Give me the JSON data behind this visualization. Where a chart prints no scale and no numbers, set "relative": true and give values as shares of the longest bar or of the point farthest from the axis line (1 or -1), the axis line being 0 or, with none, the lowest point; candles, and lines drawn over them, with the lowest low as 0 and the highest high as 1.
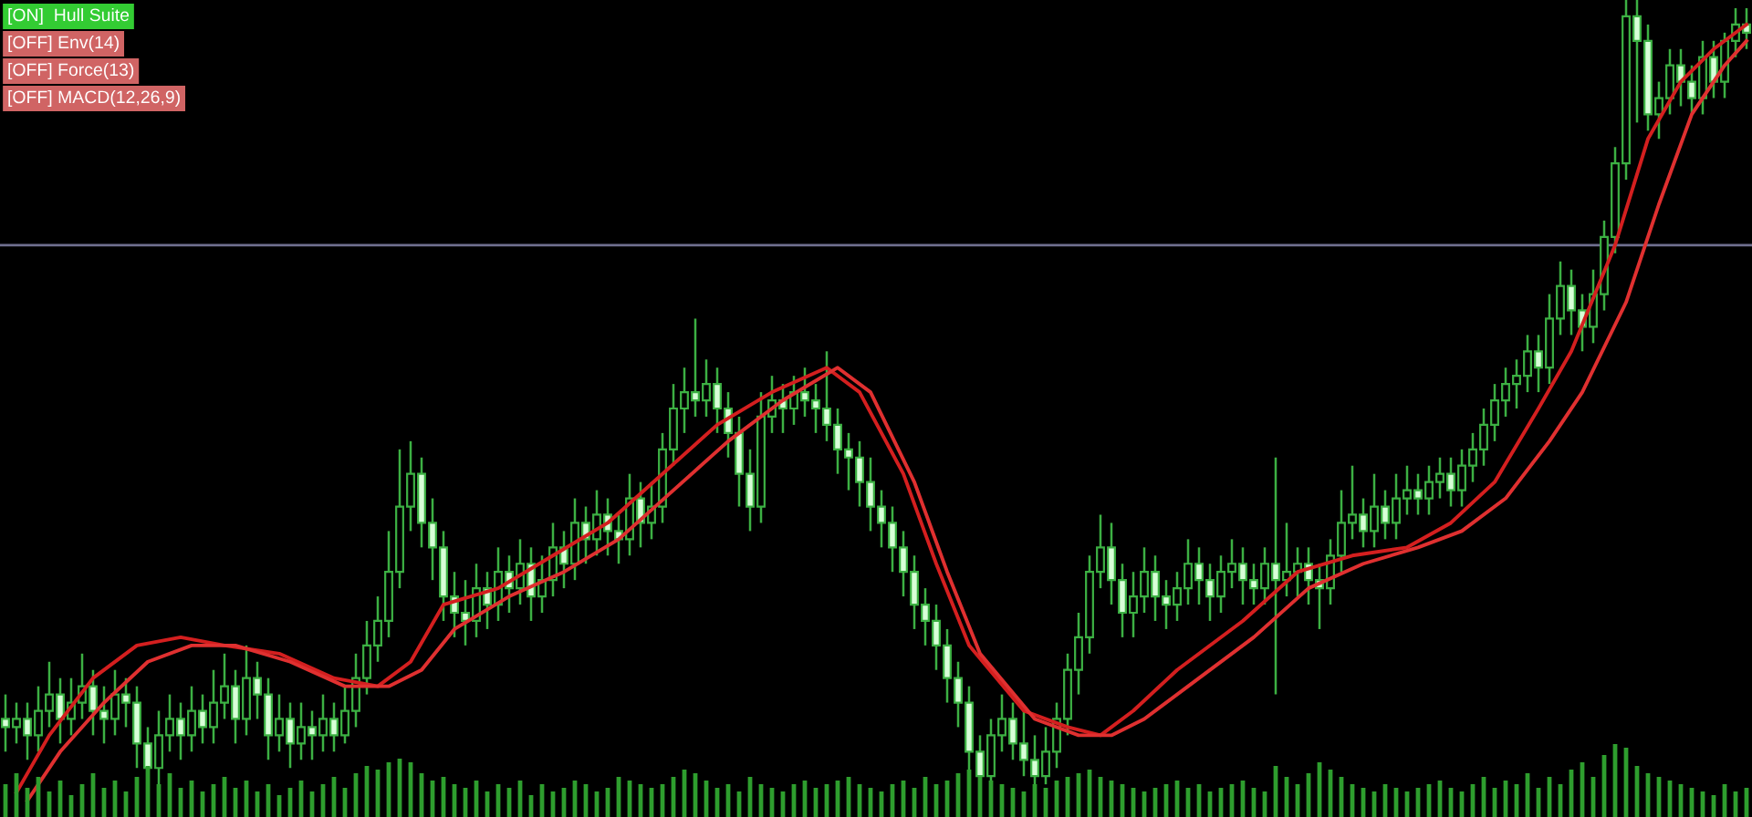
{
  "chart_data": [
    {
      "type": "candlestick",
      "relative": true,
      "categories": [
        null,
        null,
        null,
        null,
        null,
        null,
        null,
        null,
        null,
        null,
        null,
        null,
        null,
        null,
        null,
        null,
        null,
        null,
        null,
        null,
        null,
        null,
        null,
        null,
        null,
        null,
        null,
        null,
        null,
        null,
        null,
        null,
        null,
        null,
        null,
        null,
        null,
        null,
        null,
        null,
        null,
        null,
        null,
        null,
        null,
        null,
        null,
        null,
        null,
        null,
        null,
        null,
        null,
        null,
        null,
        null,
        null,
        null,
        null,
        null,
        null,
        null,
        null,
        null,
        null,
        null,
        null,
        null,
        null,
        null,
        null,
        null,
        null,
        null,
        null,
        null,
        null,
        null,
        null,
        null,
        null,
        null,
        null,
        null,
        null,
        null,
        null,
        null,
        null,
        null,
        null,
        null,
        null,
        null,
        null,
        null,
        null,
        null,
        null,
        null,
        null,
        null,
        null,
        null,
        null,
        null,
        null,
        null,
        null,
        null,
        null,
        null,
        null,
        null,
        null,
        null,
        null,
        null,
        null,
        null,
        null,
        null,
        null,
        null,
        null,
        null,
        null,
        null,
        null,
        null,
        null,
        null,
        null,
        null,
        null,
        null,
        null,
        null,
        null,
        null,
        null,
        null,
        null,
        null,
        null,
        null,
        null,
        null,
        null,
        null,
        null,
        null,
        null,
        null,
        null,
        null,
        null,
        null,
        null,
        null
      ],
      "ohlc": [
        [
          0.12,
          0.15,
          0.08,
          0.11
        ],
        [
          0.11,
          0.14,
          0.09,
          0.12
        ],
        [
          0.12,
          0.14,
          0.07,
          0.1
        ],
        [
          0.1,
          0.16,
          0.08,
          0.13
        ],
        [
          0.13,
          0.19,
          0.11,
          0.15
        ],
        [
          0.15,
          0.17,
          0.09,
          0.12
        ],
        [
          0.12,
          0.17,
          0.1,
          0.14
        ],
        [
          0.14,
          0.2,
          0.12,
          0.16
        ],
        [
          0.16,
          0.18,
          0.1,
          0.13
        ],
        [
          0.13,
          0.16,
          0.09,
          0.12
        ],
        [
          0.12,
          0.18,
          0.1,
          0.15
        ],
        [
          0.15,
          0.17,
          0.11,
          0.14
        ],
        [
          0.14,
          0.16,
          0.06,
          0.09
        ],
        [
          0.09,
          0.11,
          0.0,
          0.06
        ],
        [
          0.06,
          0.13,
          0.04,
          0.1
        ],
        [
          0.1,
          0.15,
          0.08,
          0.12
        ],
        [
          0.12,
          0.14,
          0.07,
          0.1
        ],
        [
          0.1,
          0.16,
          0.08,
          0.13
        ],
        [
          0.13,
          0.15,
          0.09,
          0.11
        ],
        [
          0.11,
          0.18,
          0.09,
          0.14
        ],
        [
          0.14,
          0.2,
          0.12,
          0.16
        ],
        [
          0.16,
          0.18,
          0.09,
          0.12
        ],
        [
          0.12,
          0.21,
          0.1,
          0.17
        ],
        [
          0.17,
          0.19,
          0.12,
          0.15
        ],
        [
          0.15,
          0.17,
          0.07,
          0.1
        ],
        [
          0.1,
          0.15,
          0.08,
          0.12
        ],
        [
          0.12,
          0.14,
          0.06,
          0.09
        ],
        [
          0.09,
          0.14,
          0.07,
          0.11
        ],
        [
          0.11,
          0.13,
          0.07,
          0.1
        ],
        [
          0.1,
          0.15,
          0.08,
          0.12
        ],
        [
          0.12,
          0.14,
          0.08,
          0.1
        ],
        [
          0.1,
          0.16,
          0.09,
          0.13
        ],
        [
          0.13,
          0.2,
          0.11,
          0.17
        ],
        [
          0.17,
          0.24,
          0.15,
          0.21
        ],
        [
          0.21,
          0.27,
          0.19,
          0.24
        ],
        [
          0.24,
          0.35,
          0.22,
          0.3
        ],
        [
          0.3,
          0.45,
          0.28,
          0.38
        ],
        [
          0.38,
          0.46,
          0.35,
          0.42
        ],
        [
          0.42,
          0.44,
          0.33,
          0.36
        ],
        [
          0.36,
          0.39,
          0.29,
          0.33
        ],
        [
          0.33,
          0.35,
          0.24,
          0.27
        ],
        [
          0.27,
          0.3,
          0.22,
          0.25
        ],
        [
          0.25,
          0.29,
          0.21,
          0.24
        ],
        [
          0.24,
          0.31,
          0.22,
          0.28
        ],
        [
          0.28,
          0.3,
          0.23,
          0.26
        ],
        [
          0.26,
          0.33,
          0.24,
          0.3
        ],
        [
          0.3,
          0.32,
          0.25,
          0.28
        ],
        [
          0.28,
          0.34,
          0.26,
          0.31
        ],
        [
          0.31,
          0.33,
          0.24,
          0.27
        ],
        [
          0.27,
          0.32,
          0.25,
          0.29
        ],
        [
          0.29,
          0.36,
          0.27,
          0.33
        ],
        [
          0.33,
          0.35,
          0.28,
          0.31
        ],
        [
          0.31,
          0.39,
          0.29,
          0.36
        ],
        [
          0.36,
          0.38,
          0.31,
          0.34
        ],
        [
          0.34,
          0.4,
          0.32,
          0.37
        ],
        [
          0.37,
          0.39,
          0.32,
          0.35
        ],
        [
          0.35,
          0.37,
          0.31,
          0.34
        ],
        [
          0.34,
          0.42,
          0.32,
          0.39
        ],
        [
          0.39,
          0.41,
          0.33,
          0.36
        ],
        [
          0.36,
          0.41,
          0.34,
          0.38
        ],
        [
          0.38,
          0.47,
          0.36,
          0.45
        ],
        [
          0.45,
          0.53,
          0.43,
          0.5
        ],
        [
          0.5,
          0.55,
          0.47,
          0.52
        ],
        [
          0.52,
          0.61,
          0.49,
          0.51
        ],
        [
          0.51,
          0.56,
          0.49,
          0.53
        ],
        [
          0.53,
          0.55,
          0.47,
          0.5
        ],
        [
          0.5,
          0.52,
          0.44,
          0.47
        ],
        [
          0.47,
          0.49,
          0.38,
          0.42
        ],
        [
          0.42,
          0.45,
          0.35,
          0.38
        ],
        [
          0.38,
          0.52,
          0.36,
          0.49
        ],
        [
          0.49,
          0.54,
          0.47,
          0.51
        ],
        [
          0.51,
          0.53,
          0.47,
          0.5
        ],
        [
          0.5,
          0.54,
          0.48,
          0.52
        ],
        [
          0.52,
          0.55,
          0.49,
          0.51
        ],
        [
          0.51,
          0.53,
          0.47,
          0.5
        ],
        [
          0.5,
          0.57,
          0.46,
          0.48
        ],
        [
          0.48,
          0.5,
          0.42,
          0.45
        ],
        [
          0.45,
          0.47,
          0.4,
          0.44
        ],
        [
          0.44,
          0.46,
          0.38,
          0.41
        ],
        [
          0.41,
          0.44,
          0.35,
          0.38
        ],
        [
          0.38,
          0.4,
          0.33,
          0.36
        ],
        [
          0.36,
          0.38,
          0.3,
          0.33
        ],
        [
          0.33,
          0.35,
          0.27,
          0.3
        ],
        [
          0.3,
          0.32,
          0.23,
          0.26
        ],
        [
          0.26,
          0.28,
          0.21,
          0.24
        ],
        [
          0.24,
          0.26,
          0.18,
          0.21
        ],
        [
          0.21,
          0.23,
          0.14,
          0.17
        ],
        [
          0.17,
          0.19,
          0.11,
          0.14
        ],
        [
          0.14,
          0.16,
          0.05,
          0.08
        ],
        [
          0.08,
          0.1,
          0.02,
          0.05
        ],
        [
          0.05,
          0.12,
          0.04,
          0.1
        ],
        [
          0.1,
          0.15,
          0.08,
          0.12
        ],
        [
          0.12,
          0.14,
          0.07,
          0.09
        ],
        [
          0.09,
          0.13,
          0.05,
          0.07
        ],
        [
          0.07,
          0.1,
          0.03,
          0.05
        ],
        [
          0.05,
          0.11,
          0.04,
          0.08
        ],
        [
          0.08,
          0.14,
          0.06,
          0.12
        ],
        [
          0.12,
          0.2,
          0.1,
          0.18
        ],
        [
          0.18,
          0.25,
          0.15,
          0.22
        ],
        [
          0.22,
          0.32,
          0.2,
          0.3
        ],
        [
          0.3,
          0.37,
          0.28,
          0.33
        ],
        [
          0.33,
          0.36,
          0.26,
          0.29
        ],
        [
          0.29,
          0.31,
          0.22,
          0.25
        ],
        [
          0.25,
          0.3,
          0.22,
          0.27
        ],
        [
          0.27,
          0.33,
          0.25,
          0.3
        ],
        [
          0.3,
          0.32,
          0.24,
          0.27
        ],
        [
          0.27,
          0.29,
          0.23,
          0.26
        ],
        [
          0.26,
          0.3,
          0.24,
          0.28
        ],
        [
          0.28,
          0.34,
          0.26,
          0.31
        ],
        [
          0.31,
          0.33,
          0.26,
          0.29
        ],
        [
          0.29,
          0.31,
          0.24,
          0.27
        ],
        [
          0.27,
          0.32,
          0.25,
          0.3
        ],
        [
          0.3,
          0.34,
          0.28,
          0.31
        ],
        [
          0.31,
          0.33,
          0.26,
          0.29
        ],
        [
          0.29,
          0.31,
          0.26,
          0.28
        ],
        [
          0.28,
          0.33,
          0.26,
          0.31
        ],
        [
          0.31,
          0.44,
          0.15,
          0.29
        ],
        [
          0.29,
          0.36,
          0.27,
          0.3
        ],
        [
          0.3,
          0.33,
          0.27,
          0.31
        ],
        [
          0.31,
          0.33,
          0.26,
          0.29
        ],
        [
          0.29,
          0.31,
          0.23,
          0.28
        ],
        [
          0.28,
          0.34,
          0.26,
          0.32
        ],
        [
          0.32,
          0.4,
          0.3,
          0.36
        ],
        [
          0.36,
          0.43,
          0.34,
          0.37
        ],
        [
          0.37,
          0.39,
          0.33,
          0.35
        ],
        [
          0.35,
          0.42,
          0.33,
          0.38
        ],
        [
          0.38,
          0.4,
          0.34,
          0.36
        ],
        [
          0.36,
          0.42,
          0.34,
          0.39
        ],
        [
          0.39,
          0.43,
          0.37,
          0.4
        ],
        [
          0.4,
          0.42,
          0.37,
          0.39
        ],
        [
          0.39,
          0.43,
          0.37,
          0.41
        ],
        [
          0.41,
          0.44,
          0.39,
          0.42
        ],
        [
          0.42,
          0.44,
          0.38,
          0.4
        ],
        [
          0.4,
          0.45,
          0.38,
          0.43
        ],
        [
          0.43,
          0.47,
          0.41,
          0.45
        ],
        [
          0.45,
          0.5,
          0.43,
          0.48
        ],
        [
          0.48,
          0.53,
          0.46,
          0.51
        ],
        [
          0.51,
          0.55,
          0.49,
          0.53
        ],
        [
          0.53,
          0.56,
          0.5,
          0.54
        ],
        [
          0.54,
          0.59,
          0.52,
          0.57
        ],
        [
          0.57,
          0.59,
          0.52,
          0.55
        ],
        [
          0.55,
          0.64,
          0.53,
          0.61
        ],
        [
          0.61,
          0.68,
          0.59,
          0.65
        ],
        [
          0.65,
          0.67,
          0.59,
          0.62
        ],
        [
          0.62,
          0.64,
          0.57,
          0.6
        ],
        [
          0.6,
          0.67,
          0.58,
          0.64
        ],
        [
          0.64,
          0.73,
          0.62,
          0.71
        ],
        [
          0.71,
          0.82,
          0.69,
          0.8
        ],
        [
          0.8,
          1.0,
          0.78,
          0.98
        ],
        [
          0.98,
          1.0,
          0.85,
          0.95
        ],
        [
          0.95,
          0.97,
          0.84,
          0.86
        ],
        [
          0.86,
          0.9,
          0.83,
          0.88
        ],
        [
          0.88,
          0.94,
          0.86,
          0.92
        ],
        [
          0.92,
          0.94,
          0.87,
          0.9
        ],
        [
          0.9,
          0.92,
          0.86,
          0.88
        ],
        [
          0.88,
          0.95,
          0.86,
          0.93
        ],
        [
          0.93,
          0.95,
          0.88,
          0.9
        ],
        [
          0.9,
          0.96,
          0.88,
          0.95
        ],
        [
          0.95,
          0.99,
          0.93,
          0.97
        ],
        [
          0.97,
          0.99,
          0.94,
          0.96
        ]
      ],
      "series": [
        {
          "type": "line",
          "color": "#d41f1f",
          "values": [
            null,
            0.03,
            null,
            null,
            0.1,
            null,
            null,
            null,
            0.17,
            null,
            null,
            null,
            0.21,
            null,
            null,
            null,
            0.22,
            null,
            null,
            null,
            0.21,
            null,
            null,
            null,
            null,
            0.2,
            null,
            null,
            null,
            null,
            0.17,
            null,
            null,
            null,
            0.16,
            null,
            null,
            0.19,
            null,
            null,
            0.26,
            null,
            null,
            null,
            null,
            0.28,
            null,
            null,
            null,
            null,
            0.32,
            null,
            null,
            null,
            null,
            0.36,
            null,
            null,
            null,
            null,
            0.42,
            null,
            null,
            null,
            null,
            0.48,
            null,
            null,
            null,
            null,
            0.52,
            null,
            null,
            null,
            null,
            0.55,
            null,
            null,
            0.52,
            null,
            null,
            null,
            0.42,
            null,
            null,
            0.31,
            null,
            null,
            0.21,
            null,
            null,
            null,
            null,
            0.13,
            null,
            null,
            null,
            0.11,
            null,
            null,
            0.1,
            null,
            null,
            0.13,
            null,
            null,
            null,
            0.18,
            null,
            null,
            null,
            null,
            null,
            0.24,
            null,
            null,
            null,
            null,
            0.3,
            null,
            null,
            null,
            null,
            0.32,
            null,
            null,
            null,
            null,
            0.33,
            null,
            null,
            null,
            0.36,
            null,
            null,
            null,
            0.41,
            null,
            null,
            null,
            0.5,
            null,
            null,
            0.57,
            null,
            null,
            null,
            0.7,
            null,
            null,
            0.83,
            null,
            null,
            0.9,
            null,
            null,
            0.94,
            null,
            null,
            0.97
          ]
        },
        {
          "type": "line",
          "color": "#e03030",
          "values": [
            null,
            null,
            0.02,
            null,
            null,
            0.08,
            null,
            null,
            null,
            0.14,
            null,
            null,
            null,
            0.19,
            null,
            null,
            null,
            0.21,
            null,
            null,
            null,
            0.21,
            null,
            null,
            null,
            null,
            0.19,
            null,
            null,
            null,
            null,
            0.16,
            null,
            null,
            null,
            0.16,
            null,
            null,
            0.18,
            null,
            null,
            0.23,
            null,
            null,
            null,
            null,
            0.27,
            null,
            null,
            null,
            null,
            0.3,
            null,
            null,
            null,
            null,
            0.34,
            null,
            null,
            null,
            null,
            0.4,
            null,
            null,
            null,
            null,
            0.46,
            null,
            null,
            null,
            null,
            0.51,
            null,
            null,
            null,
            null,
            0.55,
            null,
            null,
            0.52,
            null,
            null,
            null,
            0.41,
            null,
            null,
            0.3,
            null,
            null,
            0.2,
            null,
            null,
            null,
            null,
            0.12,
            null,
            null,
            null,
            0.1,
            null,
            null,
            0.1,
            null,
            null,
            0.12,
            null,
            null,
            null,
            0.16,
            null,
            null,
            null,
            null,
            null,
            0.22,
            null,
            null,
            null,
            null,
            0.28,
            null,
            null,
            null,
            null,
            0.31,
            null,
            null,
            null,
            null,
            0.33,
            null,
            null,
            null,
            0.35,
            null,
            null,
            null,
            0.39,
            null,
            null,
            null,
            0.46,
            null,
            null,
            0.52,
            null,
            null,
            null,
            0.63,
            null,
            null,
            0.75,
            null,
            null,
            0.86,
            null,
            null,
            0.92,
            null,
            0.95
          ]
        }
      ],
      "ref_lines": [
        {
          "axis": "y",
          "value": 0.7,
          "color": "#6f6f8f"
        }
      ],
      "annotations": [
        "[ON]  Hull Suite",
        "[OFF] Env(14)",
        "[OFF] Force(13)",
        "[OFF] MACD(12,26,9)"
      ]
    },
    {
      "type": "bar",
      "relative": true,
      "color": "#2e9e2e",
      "categories": [
        null,
        null,
        null,
        null,
        null,
        null,
        null,
        null,
        null,
        null,
        null,
        null,
        null,
        null,
        null,
        null,
        null,
        null,
        null,
        null,
        null,
        null,
        null,
        null,
        null,
        null,
        null,
        null,
        null,
        null,
        null,
        null,
        null,
        null,
        null,
        null,
        null,
        null,
        null,
        null,
        null,
        null,
        null,
        null,
        null,
        null,
        null,
        null,
        null,
        null,
        null,
        null,
        null,
        null,
        null,
        null,
        null,
        null,
        null,
        null,
        null,
        null,
        null,
        null,
        null,
        null,
        null,
        null,
        null,
        null,
        null,
        null,
        null,
        null,
        null,
        null,
        null,
        null,
        null,
        null,
        null,
        null,
        null,
        null,
        null,
        null,
        null,
        null,
        null,
        null,
        null,
        null,
        null,
        null,
        null,
        null,
        null,
        null,
        null,
        null,
        null,
        null,
        null,
        null,
        null,
        null,
        null,
        null,
        null,
        null,
        null,
        null,
        null,
        null,
        null,
        null,
        null,
        null,
        null,
        null,
        null,
        null,
        null,
        null,
        null,
        null,
        null,
        null,
        null,
        null,
        null,
        null,
        null,
        null,
        null,
        null,
        null,
        null,
        null,
        null,
        null,
        null,
        null,
        null,
        null,
        null,
        null,
        null,
        null,
        null,
        null,
        null,
        null,
        null,
        null,
        null,
        null,
        null,
        null,
        null
      ],
      "values": [
        0.45,
        0.6,
        0.4,
        0.55,
        0.35,
        0.5,
        0.3,
        0.45,
        0.6,
        0.4,
        0.5,
        0.35,
        0.55,
        0.7,
        0.45,
        0.6,
        0.4,
        0.5,
        0.35,
        0.45,
        0.55,
        0.4,
        0.5,
        0.35,
        0.45,
        0.3,
        0.4,
        0.5,
        0.35,
        0.45,
        0.55,
        0.4,
        0.6,
        0.7,
        0.65,
        0.75,
        0.8,
        0.75,
        0.6,
        0.5,
        0.55,
        0.45,
        0.4,
        0.5,
        0.35,
        0.45,
        0.4,
        0.5,
        0.3,
        0.45,
        0.35,
        0.4,
        0.5,
        0.45,
        0.35,
        0.4,
        0.55,
        0.5,
        0.45,
        0.4,
        0.45,
        0.55,
        0.65,
        0.6,
        0.5,
        0.4,
        0.45,
        0.35,
        0.55,
        0.45,
        0.4,
        0.35,
        0.45,
        0.5,
        0.4,
        0.45,
        0.5,
        0.55,
        0.45,
        0.4,
        0.35,
        0.45,
        0.5,
        0.4,
        0.55,
        0.45,
        0.5,
        0.6,
        0.65,
        0.55,
        0.5,
        0.45,
        0.4,
        0.35,
        0.45,
        0.4,
        0.5,
        0.55,
        0.6,
        0.65,
        0.55,
        0.5,
        0.45,
        0.4,
        0.35,
        0.4,
        0.45,
        0.5,
        0.4,
        0.45,
        0.35,
        0.4,
        0.45,
        0.5,
        0.4,
        0.35,
        0.7,
        0.55,
        0.45,
        0.6,
        0.75,
        0.65,
        0.55,
        0.45,
        0.4,
        0.35,
        0.45,
        0.4,
        0.35,
        0.4,
        0.45,
        0.5,
        0.4,
        0.35,
        0.45,
        0.55,
        0.4,
        0.5,
        0.45,
        0.6,
        0.4,
        0.55,
        0.45,
        0.65,
        0.75,
        0.55,
        0.85,
        1.0,
        0.95,
        0.7,
        0.6,
        0.55,
        0.5,
        0.45,
        0.4,
        0.35,
        0.3,
        0.45,
        0.35,
        0.4
      ]
    }
  ]
}
